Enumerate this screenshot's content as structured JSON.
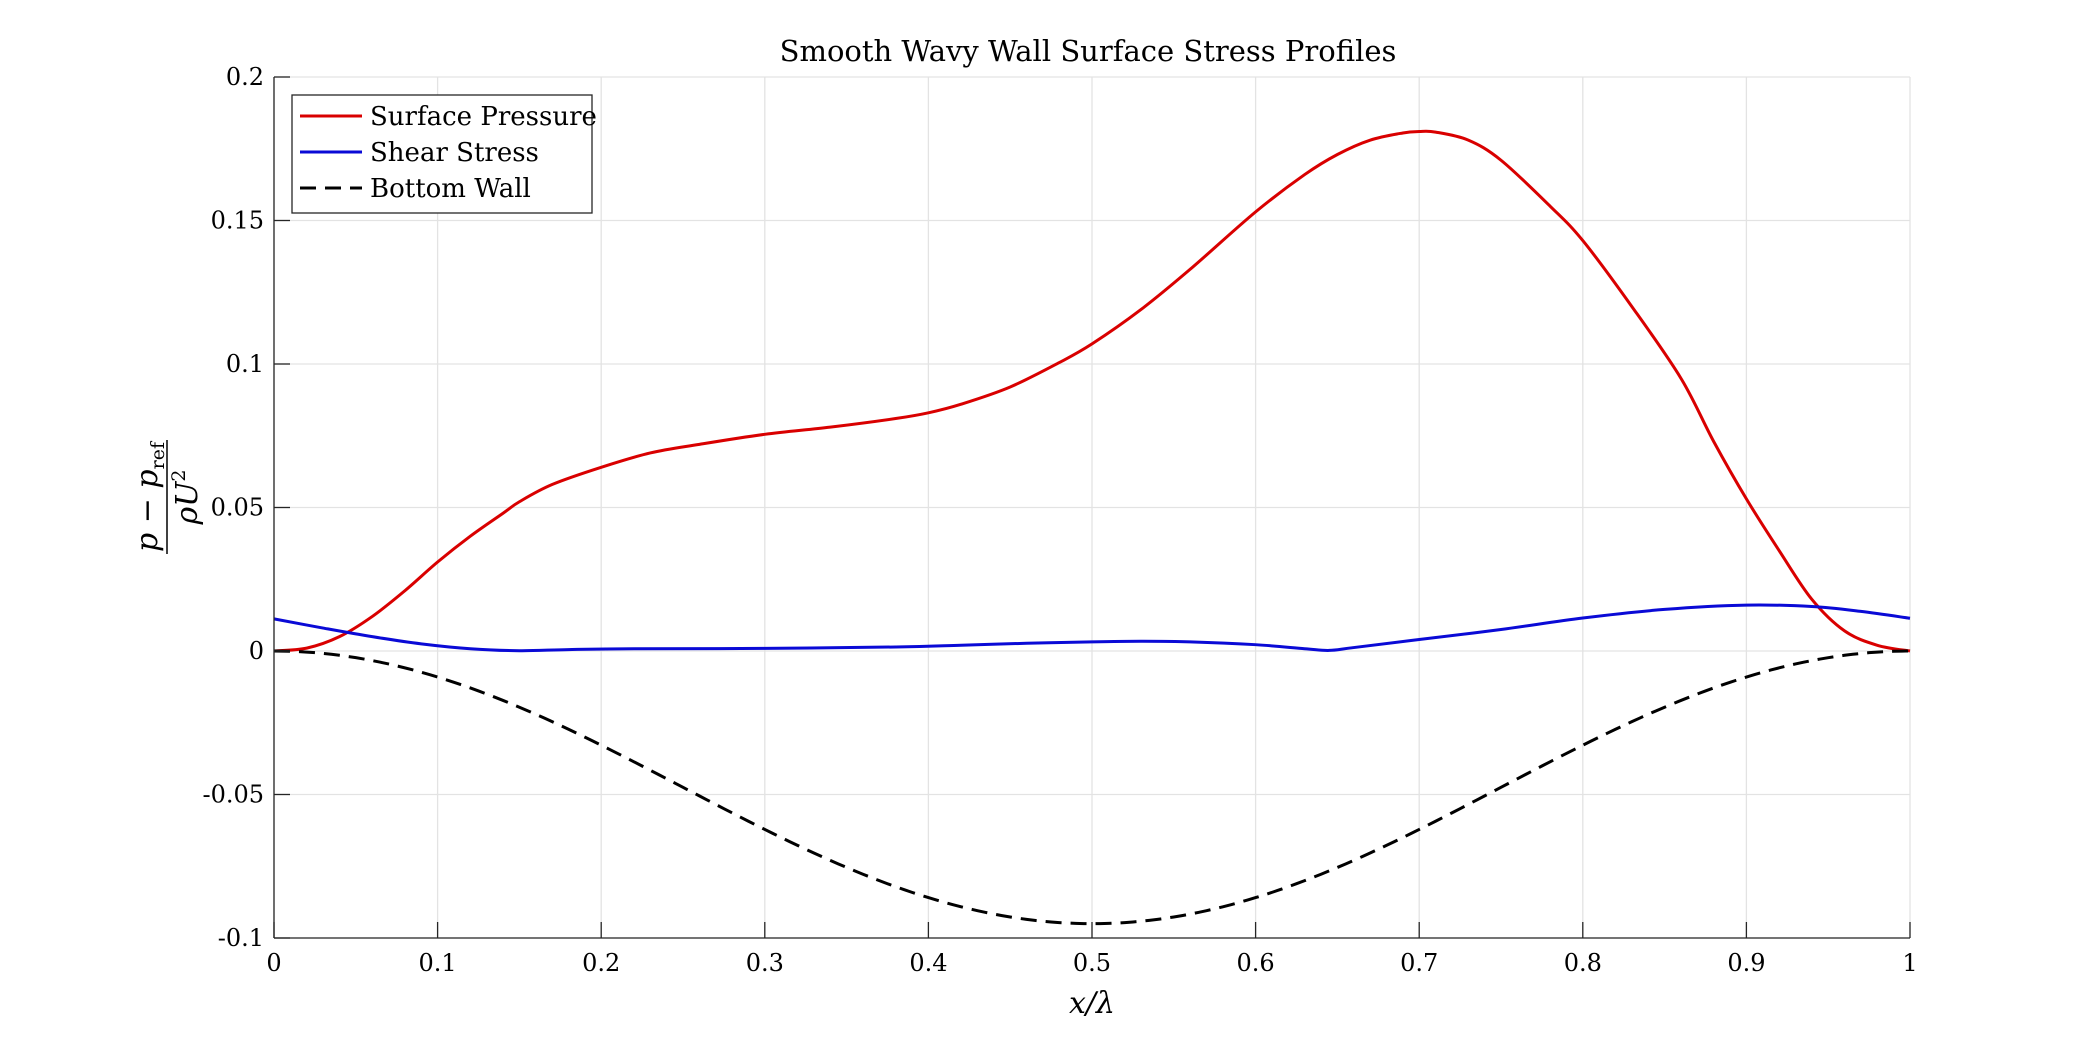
{
  "chart_data": {
    "type": "line",
    "title": "Smooth Wavy Wall Surface Stress Profiles",
    "xlabel": "x/λ",
    "ylabel": {
      "numerator": "p − p",
      "numerator_subscript": "ref",
      "denominator": "ρU",
      "denominator_superscript": "2"
    },
    "xlim": [
      0,
      1
    ],
    "ylim": [
      -0.1,
      0.2
    ],
    "xticks": [
      0,
      0.1,
      0.2,
      0.3,
      0.4,
      0.5,
      0.6,
      0.7,
      0.8,
      0.9,
      1
    ],
    "xtick_labels": [
      "0",
      "0.1",
      "0.2",
      "0.3",
      "0.4",
      "0.5",
      "0.6",
      "0.7",
      "0.8",
      "0.9",
      "1"
    ],
    "yticks": [
      -0.1,
      -0.05,
      0,
      0.05,
      0.1,
      0.15,
      0.2
    ],
    "ytick_labels": [
      "-0.1",
      "-0.05",
      "0",
      "0.05",
      "0.1",
      "0.15",
      "0.2"
    ],
    "grid": true,
    "legend_position": "top-left",
    "series": [
      {
        "name": "Surface Pressure",
        "color": "#d90000",
        "style": "solid",
        "x": [
          0,
          0.02,
          0.04,
          0.06,
          0.08,
          0.1,
          0.12,
          0.14,
          0.15,
          0.17,
          0.2,
          0.23,
          0.26,
          0.3,
          0.34,
          0.38,
          0.4,
          0.42,
          0.45,
          0.48,
          0.5,
          0.53,
          0.56,
          0.6,
          0.63,
          0.65,
          0.67,
          0.69,
          0.7,
          0.71,
          0.73,
          0.75,
          0.78,
          0.8,
          0.83,
          0.86,
          0.88,
          0.9,
          0.92,
          0.94,
          0.96,
          0.98,
          1
        ],
        "y": [
          0,
          0.001,
          0.005,
          0.012,
          0.021,
          0.031,
          0.04,
          0.048,
          0.052,
          0.058,
          0.064,
          0.069,
          0.072,
          0.0755,
          0.078,
          0.081,
          0.083,
          0.086,
          0.092,
          0.1005,
          0.107,
          0.119,
          0.133,
          0.153,
          0.166,
          0.173,
          0.178,
          0.1805,
          0.181,
          0.1808,
          0.178,
          0.171,
          0.155,
          0.143,
          0.12,
          0.095,
          0.073,
          0.053,
          0.035,
          0.018,
          0.007,
          0.002,
          0
        ]
      },
      {
        "name": "Shear Stress",
        "color": "#0a0ad6",
        "style": "solid",
        "x": [
          0,
          0.03,
          0.06,
          0.09,
          0.12,
          0.15,
          0.18,
          0.22,
          0.3,
          0.38,
          0.42,
          0.46,
          0.5,
          0.53,
          0.56,
          0.6,
          0.63,
          0.645,
          0.66,
          0.7,
          0.75,
          0.8,
          0.85,
          0.9,
          0.94,
          0.97,
          1
        ],
        "y": [
          0.0112,
          0.008,
          0.005,
          0.0025,
          0.0008,
          0.0001,
          0.0005,
          0.0008,
          0.0009,
          0.0014,
          0.002,
          0.0027,
          0.0032,
          0.0034,
          0.0032,
          0.0022,
          0.0008,
          0.0002,
          0.0012,
          0.004,
          0.0075,
          0.0115,
          0.0145,
          0.016,
          0.0155,
          0.0138,
          0.0114
        ]
      },
      {
        "name": "Bottom Wall",
        "color": "#000000",
        "style": "dashed",
        "function": "-0.0475*(1-cos(2*pi*x))",
        "x_range": [
          0,
          1
        ]
      }
    ]
  }
}
